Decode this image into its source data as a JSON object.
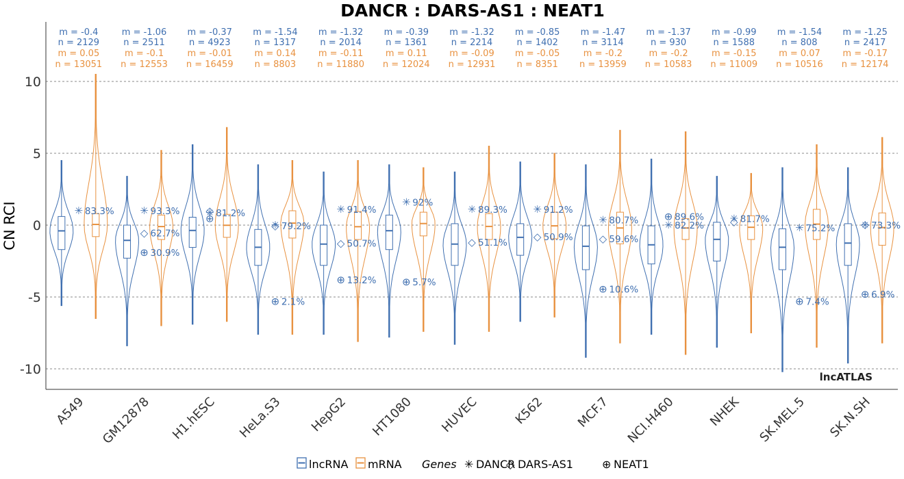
{
  "chart_data": {
    "type": "violin",
    "title": "DANCR : DARS-AS1 : NEAT1",
    "ylabel": "CN RCI",
    "xlabel": "",
    "ylim": [
      -11.5,
      14.2
    ],
    "yticks": [
      {
        "value": 10,
        "label": "10"
      },
      {
        "value": 5,
        "label": "5"
      },
      {
        "value": 0,
        "label": "0"
      },
      {
        "value": -5,
        "label": "-5"
      },
      {
        "value": -10,
        "label": "-10"
      }
    ],
    "grid": true,
    "colors": {
      "lncRNA": "#3f6fb0",
      "mRNA": "#e8913f"
    },
    "brand": "lncATLAS",
    "legend": {
      "placement": "bottom",
      "series": [
        "lncRNA",
        "mRNA"
      ],
      "genes_title": "Genes",
      "genes": [
        {
          "name": "DANCR",
          "marker": "✳"
        },
        {
          "name": "DARS-AS1",
          "marker": "◇"
        },
        {
          "name": "NEAT1",
          "marker": "⊕"
        }
      ]
    },
    "cell_lines": [
      {
        "name": "A549",
        "lnc": {
          "m_label": "m = -0.4",
          "n_label": "n = 2129",
          "median": -0.4,
          "q1": -1.7,
          "q3": 0.6,
          "min": -5.6,
          "max": 4.5
        },
        "mrna": {
          "m_label": "m = 0.05",
          "n_label": "n = 13051",
          "median": 0.05,
          "q1": -0.8,
          "q3": 0.8,
          "min": -6.5,
          "max": 10.5
        },
        "genes": [
          {
            "gene": "DANCR",
            "marker": "✳",
            "value": 1.0,
            "pct": "83.3%",
            "pct_value": 83.3
          }
        ]
      },
      {
        "name": "GM12878",
        "lnc": {
          "m_label": "m = -1.06",
          "n_label": "n = 2511",
          "median": -1.06,
          "q1": -2.3,
          "q3": 0.0,
          "min": -8.4,
          "max": 3.4
        },
        "mrna": {
          "m_label": "m = -0.1",
          "n_label": "n = 12553",
          "median": -0.1,
          "q1": -1.0,
          "q3": 0.7,
          "min": -7.0,
          "max": 5.2
        },
        "genes": [
          {
            "gene": "DANCR",
            "marker": "✳",
            "value": 1.0,
            "pct": "93.3%",
            "pct_value": 93.3
          },
          {
            "gene": "DARS-AS1",
            "marker": "◇",
            "value": -0.55,
            "pct": "62.7%",
            "pct_value": 62.7
          },
          {
            "gene": "NEAT1",
            "marker": "⊕",
            "value": -1.9,
            "pct": "30.9%",
            "pct_value": 30.9
          }
        ]
      },
      {
        "name": "H1.hESC",
        "lnc": {
          "m_label": "m = -0.37",
          "n_label": "n = 4923",
          "median": -0.37,
          "q1": -1.55,
          "q3": 0.55,
          "min": -6.9,
          "max": 5.6
        },
        "mrna": {
          "m_label": "m = -0.01",
          "n_label": "n = 16459",
          "median": -0.01,
          "q1": -0.85,
          "q3": 0.75,
          "min": -6.7,
          "max": 6.8
        },
        "genes": [
          {
            "gene": "DANCR",
            "marker": "✳",
            "value": 0.85,
            "pct": "81.2%",
            "pct_value": 81.2
          },
          {
            "gene": "DARS-AS1",
            "marker": "◇",
            "value": 1.0,
            "pct": "",
            "pct_value": null
          },
          {
            "gene": "NEAT1",
            "marker": "⊕",
            "value": 0.45,
            "pct": "",
            "pct_value": null
          }
        ]
      },
      {
        "name": "HeLa.S3",
        "lnc": {
          "m_label": "m = -1.54",
          "n_label": "n = 1317",
          "median": -1.54,
          "q1": -2.8,
          "q3": -0.3,
          "min": -7.6,
          "max": 4.2
        },
        "mrna": {
          "m_label": "m = 0.14",
          "n_label": "n = 8803",
          "median": 0.14,
          "q1": -0.9,
          "q3": 1.0,
          "min": -7.6,
          "max": 4.5
        },
        "genes": [
          {
            "gene": "DANCR",
            "marker": "✳",
            "value": 0.0,
            "pct": "",
            "pct_value": null
          },
          {
            "gene": "DARS-AS1",
            "marker": "◇",
            "value": -0.05,
            "pct": "79.2%",
            "pct_value": 79.2
          },
          {
            "gene": "NEAT1",
            "marker": "⊕",
            "value": -5.3,
            "pct": "2.1%",
            "pct_value": 2.1
          }
        ]
      },
      {
        "name": "HepG2",
        "lnc": {
          "m_label": "m = -1.32",
          "n_label": "n = 2014",
          "median": -1.32,
          "q1": -2.8,
          "q3": 0.0,
          "min": -7.6,
          "max": 3.7
        },
        "mrna": {
          "m_label": "m = -0.11",
          "n_label": "n = 11880",
          "median": -0.11,
          "q1": -1.0,
          "q3": 0.95,
          "min": -8.1,
          "max": 4.5
        },
        "genes": [
          {
            "gene": "DANCR",
            "marker": "✳",
            "value": 1.1,
            "pct": "91.4%",
            "pct_value": 91.4
          },
          {
            "gene": "DARS-AS1",
            "marker": "◇",
            "value": -1.25,
            "pct": "50.7%",
            "pct_value": 50.7
          },
          {
            "gene": "NEAT1",
            "marker": "⊕",
            "value": -3.8,
            "pct": "13.2%",
            "pct_value": 13.2
          }
        ]
      },
      {
        "name": "HT1080",
        "lnc": {
          "m_label": "m = -0.39",
          "n_label": "n = 1361",
          "median": -0.39,
          "q1": -1.7,
          "q3": 0.7,
          "min": -7.8,
          "max": 4.2
        },
        "mrna": {
          "m_label": "m = 0.11",
          "n_label": "n = 12024",
          "median": 0.11,
          "q1": -0.75,
          "q3": 0.9,
          "min": -7.4,
          "max": 4.0
        },
        "genes": [
          {
            "gene": "DANCR",
            "marker": "✳",
            "value": 1.6,
            "pct": "92%",
            "pct_value": 92
          },
          {
            "gene": "NEAT1",
            "marker": "⊕",
            "value": -3.95,
            "pct": "5.7%",
            "pct_value": 5.7
          }
        ]
      },
      {
        "name": "HUVEC",
        "lnc": {
          "m_label": "m = -1.32",
          "n_label": "n = 2214",
          "median": -1.32,
          "q1": -2.8,
          "q3": 0.1,
          "min": -8.3,
          "max": 3.7
        },
        "mrna": {
          "m_label": "m = -0.09",
          "n_label": "n = 12931",
          "median": -0.09,
          "q1": -1.0,
          "q3": 0.8,
          "min": -7.4,
          "max": 5.5
        },
        "genes": [
          {
            "gene": "DANCR",
            "marker": "✳",
            "value": 1.1,
            "pct": "89.3%",
            "pct_value": 89.3
          },
          {
            "gene": "DARS-AS1",
            "marker": "◇",
            "value": -1.2,
            "pct": "51.1%",
            "pct_value": 51.1
          }
        ]
      },
      {
        "name": "K562",
        "lnc": {
          "m_label": "m = -0.85",
          "n_label": "n = 1402",
          "median": -0.85,
          "q1": -2.1,
          "q3": 0.1,
          "min": -6.7,
          "max": 4.4
        },
        "mrna": {
          "m_label": "m = -0.05",
          "n_label": "n = 8351",
          "median": -0.05,
          "q1": -0.95,
          "q3": 0.9,
          "min": -6.4,
          "max": 5.0
        },
        "genes": [
          {
            "gene": "DANCR",
            "marker": "✳",
            "value": 1.1,
            "pct": "91.2%",
            "pct_value": 91.2
          },
          {
            "gene": "DARS-AS1",
            "marker": "◇",
            "value": -0.8,
            "pct": "50.9%",
            "pct_value": 50.9
          }
        ]
      },
      {
        "name": "MCF.7",
        "lnc": {
          "m_label": "m = -1.47",
          "n_label": "n = 3114",
          "median": -1.47,
          "q1": -3.1,
          "q3": -0.05,
          "min": -9.2,
          "max": 4.2
        },
        "mrna": {
          "m_label": "m = -0.2",
          "n_label": "n = 13959",
          "median": -0.2,
          "q1": -1.3,
          "q3": 0.9,
          "min": -8.2,
          "max": 6.6
        },
        "genes": [
          {
            "gene": "DANCR",
            "marker": "✳",
            "value": 0.35,
            "pct": "80.7%",
            "pct_value": 80.7
          },
          {
            "gene": "DARS-AS1",
            "marker": "◇",
            "value": -0.95,
            "pct": "59.6%",
            "pct_value": 59.6
          },
          {
            "gene": "NEAT1",
            "marker": "⊕",
            "value": -4.45,
            "pct": "10.6%",
            "pct_value": 10.6
          }
        ]
      },
      {
        "name": "NCI.H460",
        "lnc": {
          "m_label": "m = -1.37",
          "n_label": "n = 930",
          "median": -1.37,
          "q1": -2.7,
          "q3": -0.05,
          "min": -7.6,
          "max": 4.6
        },
        "mrna": {
          "m_label": "m = -0.2",
          "n_label": "n = 10583",
          "median": -0.2,
          "q1": -1.0,
          "q3": 0.45,
          "min": -9.0,
          "max": 6.5
        },
        "genes": [
          {
            "gene": "DANCR",
            "marker": "✳",
            "value": 0.0,
            "pct": "82.2%",
            "pct_value": 82.2
          },
          {
            "gene": "NEAT1",
            "marker": "⊕",
            "value": 0.6,
            "pct": "89.6%",
            "pct_value": 89.6
          }
        ]
      },
      {
        "name": "NHEK",
        "lnc": {
          "m_label": "m = -0.99",
          "n_label": "n = 1588",
          "median": -0.99,
          "q1": -2.5,
          "q3": 0.2,
          "min": -8.5,
          "max": 3.4
        },
        "mrna": {
          "m_label": "m = -0.15",
          "n_label": "n = 11009",
          "median": -0.15,
          "q1": -1.0,
          "q3": 0.65,
          "min": -7.5,
          "max": 3.6
        },
        "genes": [
          {
            "gene": "DANCR",
            "marker": "✳",
            "value": 0.45,
            "pct": "81.7%",
            "pct_value": 81.7
          },
          {
            "gene": "DARS-AS1",
            "marker": "◇",
            "value": 0.25,
            "pct": "",
            "pct_value": null
          }
        ]
      },
      {
        "name": "SK.MEL.5",
        "lnc": {
          "m_label": "m = -1.54",
          "n_label": "n = 808",
          "median": -1.54,
          "q1": -3.1,
          "q3": -0.25,
          "min": -10.2,
          "max": 4.0
        },
        "mrna": {
          "m_label": "m = 0.07",
          "n_label": "n = 10516",
          "median": 0.07,
          "q1": -1.0,
          "q3": 1.1,
          "min": -8.5,
          "max": 5.6
        },
        "genes": [
          {
            "gene": "DANCR",
            "marker": "✳",
            "value": -0.2,
            "pct": "75.2%",
            "pct_value": 75.2
          },
          {
            "gene": "NEAT1",
            "marker": "⊕",
            "value": -5.3,
            "pct": "7.4%",
            "pct_value": 7.4
          }
        ]
      },
      {
        "name": "SK.N.SH",
        "lnc": {
          "m_label": "m = -1.25",
          "n_label": "n = 2417",
          "median": -1.25,
          "q1": -2.8,
          "q3": 0.1,
          "min": -9.6,
          "max": 4.0
        },
        "mrna": {
          "m_label": "m = -0.17",
          "n_label": "n = 12174",
          "median": -0.17,
          "q1": -1.4,
          "q3": 0.85,
          "min": -8.2,
          "max": 6.1
        },
        "genes": [
          {
            "gene": "DANCR",
            "marker": "✳",
            "value": 0.0,
            "pct": "73.3%",
            "pct_value": 73.3
          },
          {
            "gene": "DARS-AS1",
            "marker": "◇",
            "value": 0.05,
            "pct": "",
            "pct_value": null
          },
          {
            "gene": "NEAT1",
            "marker": "⊕",
            "value": -4.8,
            "pct": "6.9%",
            "pct_value": 6.9
          }
        ]
      }
    ]
  }
}
